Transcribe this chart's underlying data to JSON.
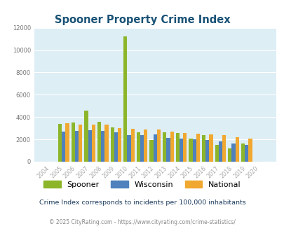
{
  "title": "Spooner Property Crime Index",
  "years": [
    2004,
    2005,
    2006,
    2007,
    2008,
    2009,
    2010,
    2011,
    2012,
    2013,
    2014,
    2015,
    2016,
    2017,
    2018,
    2019,
    2020
  ],
  "spooner": [
    0,
    3400,
    3500,
    4550,
    3600,
    3050,
    11250,
    2650,
    1950,
    2650,
    2600,
    2100,
    2400,
    1500,
    1200,
    1650,
    0
  ],
  "wisconsin": [
    0,
    2700,
    2750,
    2850,
    2750,
    2650,
    2400,
    2400,
    2450,
    2150,
    2100,
    2000,
    1950,
    1800,
    1600,
    1500,
    0
  ],
  "national": [
    0,
    3450,
    3350,
    3350,
    3300,
    3000,
    2950,
    2900,
    2900,
    2700,
    2600,
    2500,
    2450,
    2400,
    2200,
    2100,
    0
  ],
  "spooner_color": "#8db52a",
  "wisconsin_color": "#4f81bd",
  "national_color": "#f0a830",
  "bg_color": "#ddeef5",
  "grid_color": "#ffffff",
  "ylim": [
    0,
    12000
  ],
  "yticks": [
    0,
    2000,
    4000,
    6000,
    8000,
    10000,
    12000
  ],
  "tick_color": "#aaaaaa",
  "title_color": "#1a5276",
  "footer1": "Crime Index corresponds to incidents per 100,000 inhabitants",
  "footer2": "© 2025 CityRating.com - https://www.cityrating.com/crime-statistics/",
  "legend_labels": [
    "Spooner",
    "Wisconsin",
    "National"
  ]
}
